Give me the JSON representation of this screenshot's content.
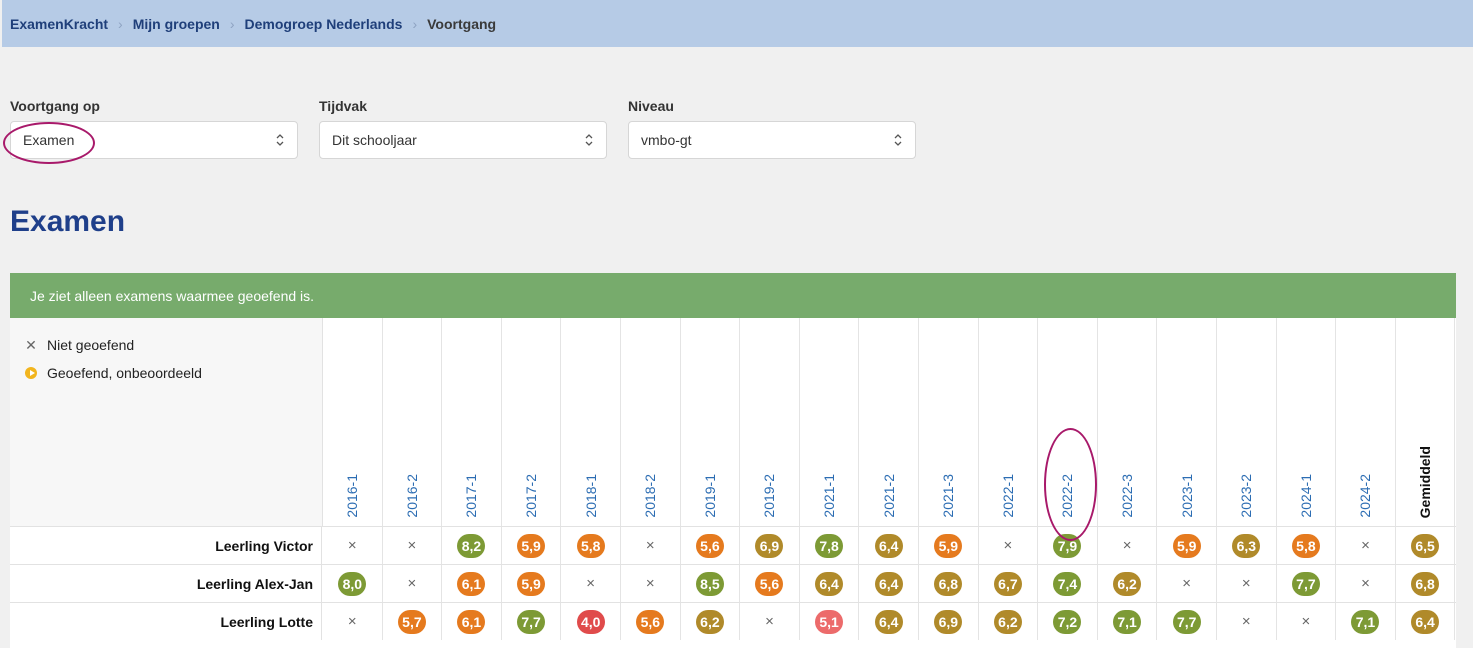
{
  "breadcrumb": [
    "ExamenKracht",
    "Mijn groepen",
    "Demogroep Nederlands",
    "Voortgang"
  ],
  "filters": {
    "voortgang": {
      "label": "Voortgang op",
      "value": "Examen"
    },
    "tijdvak": {
      "label": "Tijdvak",
      "value": "Dit schooljaar"
    },
    "niveau": {
      "label": "Niveau",
      "value": "vmbo-gt"
    }
  },
  "page_title": "Examen",
  "notice": "Je ziet alleen examens waarmee geoefend is.",
  "legend": {
    "not_practiced": "Niet geoefend",
    "practiced_ungraded": "Geoefend, onbeoordeeld"
  },
  "columns": [
    "2016-1",
    "2016-2",
    "2017-1",
    "2017-2",
    "2018-1",
    "2018-2",
    "2019-1",
    "2019-2",
    "2021-1",
    "2021-2",
    "2021-3",
    "2022-1",
    "2022-2",
    "2022-3",
    "2023-1",
    "2023-2",
    "2024-1",
    "2024-2",
    "Gemiddeld"
  ],
  "rows": [
    {
      "name": "Leerling Victor",
      "scores": [
        "×",
        "×",
        "8,2",
        "5,9",
        "5,8",
        "×",
        "5,6",
        "6,9",
        "7,8",
        "6,4",
        "5,9",
        "×",
        "7,9",
        "×",
        "5,9",
        "6,3",
        "5,8",
        "×",
        "6,5"
      ]
    },
    {
      "name": "Leerling Alex-Jan",
      "scores": [
        "8,0",
        "×",
        "6,1",
        "5,9",
        "×",
        "×",
        "8,5",
        "5,6",
        "6,4",
        "6,4",
        "6,8",
        "6,7",
        "7,4",
        "6,2",
        "×",
        "×",
        "7,7",
        "×",
        "6,8"
      ]
    },
    {
      "name": "Leerling Lotte",
      "scores": [
        "×",
        "5,7",
        "6,1",
        "7,7",
        "4,0",
        "5,6",
        "6,2",
        "×",
        "5,1",
        "6,4",
        "6,9",
        "6,2",
        "7,2",
        "7,1",
        "7,7",
        "×",
        "×",
        "7,1",
        "6,4"
      ]
    }
  ],
  "colors": {
    "header_bg": "#b6cbe6",
    "notice_bg": "#77ab6c",
    "title": "#1f3f8a",
    "highlight_circle": "#a8196a",
    "score_green": "#7d9a35",
    "score_olive": "#b08a2a",
    "score_orange": "#e57a1e",
    "score_red": "#e04b4b",
    "score_pink": "#ec6b6b"
  }
}
